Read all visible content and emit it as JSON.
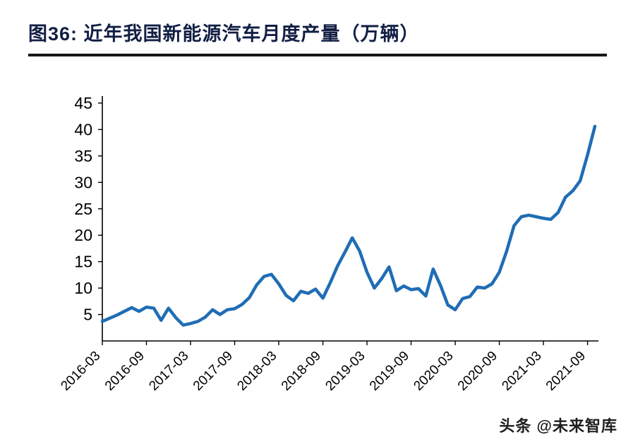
{
  "header": {
    "title": "图36:  近年我国新能源汽车月度产量（万辆）"
  },
  "watermark": {
    "text": "头条 @未来智库"
  },
  "chart_data": {
    "type": "line",
    "title": "近年我国新能源汽车月度产量（万辆）",
    "xlabel": "",
    "ylabel": "",
    "unit": "万辆",
    "grid": false,
    "legend_position": "none",
    "line_color": "#1f6db5",
    "axis_color": "#000000",
    "ylim": [
      0,
      45
    ],
    "y_ticks": [
      5,
      10,
      15,
      20,
      25,
      30,
      35,
      40,
      45
    ],
    "x_tick_labels": [
      "2016-03",
      "2016-09",
      "2017-03",
      "2017-09",
      "2018-03",
      "2018-09",
      "2019-03",
      "2019-09",
      "2020-03",
      "2020-09",
      "2021-03",
      "2021-09"
    ],
    "x_tick_step": 6,
    "x": [
      "2016-03",
      "2016-04",
      "2016-05",
      "2016-06",
      "2016-07",
      "2016-08",
      "2016-09",
      "2016-10",
      "2016-11",
      "2016-12",
      "2017-01",
      "2017-02",
      "2017-03",
      "2017-04",
      "2017-05",
      "2017-06",
      "2017-07",
      "2017-08",
      "2017-09",
      "2017-10",
      "2017-11",
      "2017-12",
      "2018-01",
      "2018-02",
      "2018-03",
      "2018-04",
      "2018-05",
      "2018-06",
      "2018-07",
      "2018-08",
      "2018-09",
      "2018-10",
      "2018-11",
      "2018-12",
      "2019-01",
      "2019-02",
      "2019-03",
      "2019-04",
      "2019-05",
      "2019-06",
      "2019-07",
      "2019-08",
      "2019-09",
      "2019-10",
      "2019-11",
      "2019-12",
      "2020-01",
      "2020-02",
      "2020-03",
      "2020-04",
      "2020-05",
      "2020-06",
      "2020-07",
      "2020-08",
      "2020-09",
      "2020-10",
      "2020-11",
      "2020-12",
      "2021-01",
      "2021-02",
      "2021-03",
      "2021-04",
      "2021-05",
      "2021-06",
      "2021-07",
      "2021-08",
      "2021-09",
      "2021-10"
    ],
    "values": [
      3.7,
      4.3,
      4.9,
      5.6,
      6.3,
      5.6,
      6.4,
      6.2,
      3.9,
      6.2,
      4.4,
      3.0,
      3.3,
      3.7,
      4.5,
      5.9,
      5.0,
      5.9,
      6.1,
      6.9,
      8.2,
      10.6,
      12.2,
      12.6,
      10.8,
      8.6,
      7.6,
      9.4,
      9.0,
      9.8,
      8.1,
      11.0,
      14.2,
      16.8,
      19.5,
      17.0,
      13.0,
      10.0,
      11.8,
      14.0,
      9.5,
      10.4,
      9.7,
      9.9,
      8.5,
      13.6,
      10.5,
      6.8,
      5.9,
      8.0,
      8.4,
      10.2,
      10.0,
      10.8,
      13.0,
      17.0,
      21.8,
      23.5,
      23.8,
      23.5,
      23.2,
      23.0,
      24.3,
      27.2,
      28.4,
      30.3,
      35.2,
      40.6
    ]
  }
}
